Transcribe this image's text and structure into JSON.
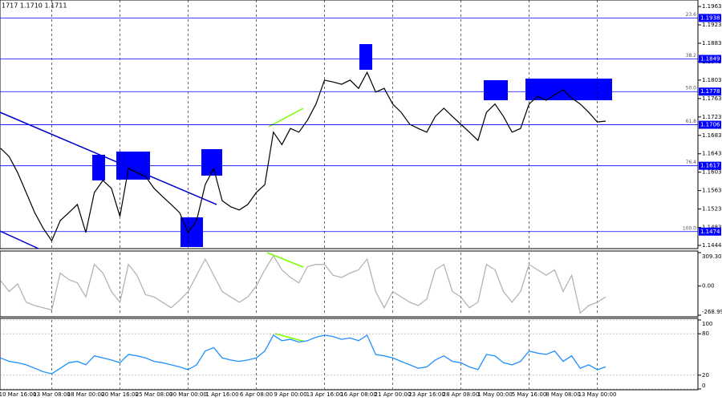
{
  "chart_data": [
    {
      "type": "line",
      "title": "1717 1.1710 1.1711",
      "categories": [
        null,
        null,
        "10 Mar 16:00",
        null,
        null,
        null,
        "13 Mar 08:00",
        null,
        null,
        null,
        "18 Mar 00:00",
        null,
        null,
        null,
        "20 Mar 16:00",
        null,
        null,
        null,
        "25 Mar 08:00",
        null,
        null,
        null,
        "30 Mar 00:00",
        null,
        null,
        null,
        "1 Apr 16:00",
        null,
        null,
        null,
        "6 Apr 08:00",
        null,
        null,
        null,
        "9 Apr 00:00",
        null,
        null,
        null,
        "13 Apr 16:00",
        null,
        null,
        null,
        "16 Apr 08:00",
        null,
        null,
        null,
        "21 Apr 00:00",
        null,
        null,
        null,
        "23 Apr 16:00",
        null,
        null,
        null,
        "28 Apr 08:00",
        null,
        null,
        null,
        "1 May 00:00",
        null,
        null,
        null,
        "5 May 16:00",
        null,
        null,
        null,
        "8 May 08:00",
        null,
        null,
        null,
        "13 May 00:00",
        null
      ],
      "series": [
        {
          "color": "#000000",
          "values": [
            1.1655,
            1.1637,
            1.1602,
            1.1559,
            1.1515,
            1.1481,
            1.1454,
            1.1498,
            1.1515,
            1.1533,
            1.1472,
            1.1559,
            1.1585,
            1.1568,
            1.1507,
            1.1611,
            1.1602,
            1.1594,
            1.1568,
            1.155,
            1.1533,
            1.1515,
            1.1472,
            1.1498,
            1.1576,
            1.1611,
            1.1541,
            1.1528,
            1.1521,
            1.1533,
            1.1559,
            1.1576,
            1.169,
            1.1663,
            1.1698,
            1.169,
            1.1716,
            1.1751,
            1.1803,
            1.1799,
            1.1794,
            1.1803,
            1.1785,
            1.182,
            1.1777,
            1.1785,
            1.1751,
            1.1733,
            1.1707,
            1.1698,
            1.169,
            1.1724,
            1.1742,
            1.1724,
            1.1707,
            1.169,
            1.1672,
            1.1733,
            1.1751,
            1.1724,
            1.169,
            1.1698,
            1.1751,
            1.1768,
            1.1759,
            1.1771,
            1.1782,
            1.1764,
            1.1751,
            1.1733,
            1.1712,
            1.1714
          ]
        }
      ],
      "ylim": [
        1.1437,
        1.1977
      ],
      "yticks": [
        1.1963,
        1.1923,
        1.1883,
        1.1843,
        1.1803,
        1.1763,
        1.1723,
        1.1683,
        1.1643,
        1.1603,
        1.1563,
        1.1523,
        1.1483,
        1.1444
      ],
      "levels": [
        {
          "ratio": 23.6,
          "price": 1.1938
        },
        {
          "ratio": 38.2,
          "price": 1.1849
        },
        {
          "ratio": {
            "value": 50,
            "label": "50.0"
          },
          "price": 1.1778
        },
        {
          "ratio": 61.8,
          "price": 1.1706
        },
        {
          "ratio": 76.4,
          "price": 1.1617
        },
        {
          "ratio": {
            "value": 100,
            "label": "100.0"
          },
          "price": 1.1474
        }
      ],
      "level_color": "#0000ff"
    },
    {
      "type": "line",
      "series": [
        {
          "color": "#b4b4b4",
          "values": [
            50,
            -50,
            20,
            -150,
            -180,
            -200,
            -220,
            120,
            60,
            30,
            -100,
            200,
            120,
            -50,
            -150,
            200,
            100,
            -80,
            -100,
            -150,
            -200,
            -130,
            -50,
            100,
            250,
            100,
            -50,
            -100,
            -150,
            -100,
            0,
            150,
            280,
            150,
            80,
            30,
            180,
            200,
            200,
            100,
            80,
            120,
            150,
            250,
            -50,
            -200,
            -50,
            -100,
            -150,
            -180,
            -120,
            150,
            200,
            -50,
            -100,
            -200,
            -150,
            200,
            150,
            -50,
            -150,
            -50,
            200,
            150,
            100,
            150,
            -50,
            100,
            -250,
            -180,
            -150,
            -100
          ]
        }
      ],
      "ylim": [
        -268.999,
        309.3066
      ],
      "yticks": [
        309.3066,
        {
          "value": 0,
          "label": "0.00"
        },
        -268.999
      ],
      "grid": false
    },
    {
      "type": "line",
      "series": [
        {
          "color": "#1e90ff",
          "values": [
            45,
            40,
            38,
            35,
            30,
            25,
            22,
            30,
            38,
            40,
            35,
            48,
            45,
            42,
            38,
            50,
            48,
            45,
            40,
            38,
            35,
            32,
            28,
            35,
            55,
            60,
            45,
            42,
            40,
            42,
            45,
            55,
            78,
            70,
            72,
            68,
            70,
            75,
            78,
            76,
            72,
            74,
            70,
            78,
            50,
            48,
            45,
            40,
            35,
            30,
            32,
            42,
            48,
            40,
            38,
            32,
            28,
            50,
            48,
            38,
            35,
            40,
            55,
            52,
            50,
            55,
            40,
            48,
            30,
            35,
            28,
            32
          ]
        }
      ],
      "ylim": [
        0,
        100
      ],
      "yticks": [
        100,
        80,
        20,
        0
      ],
      "grid": true
    }
  ]
}
